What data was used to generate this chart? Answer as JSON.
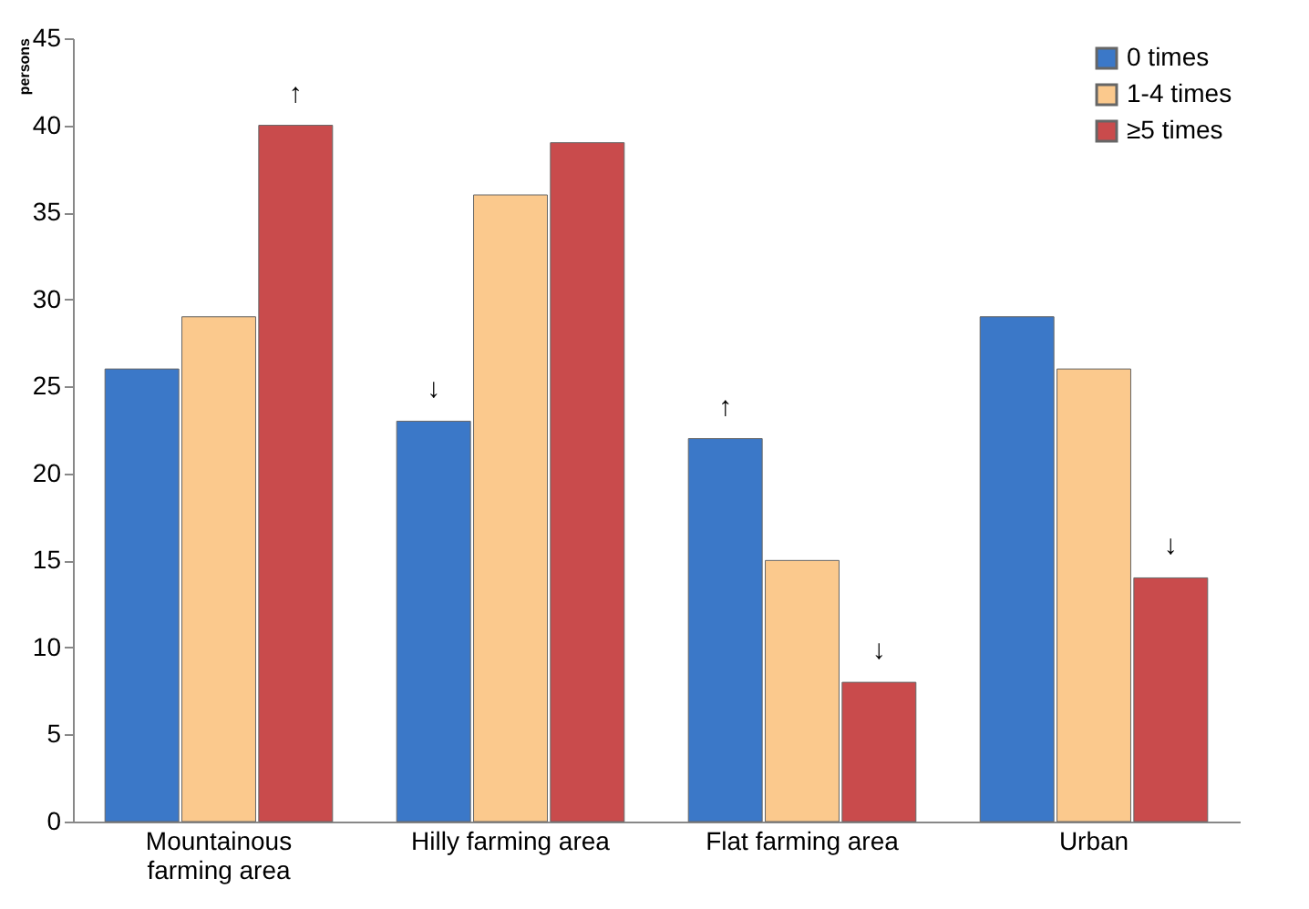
{
  "chart_data": {
    "type": "bar",
    "ylabel": "persons",
    "categories": [
      "Mountainous farming area",
      "Hilly farming area",
      "Flat farming area",
      "Urban"
    ],
    "series": [
      {
        "name": "0 times",
        "color": "#3b78c8",
        "values": [
          26,
          23,
          22,
          29
        ],
        "value_labels": [
          null,
          "↓",
          "↑",
          null
        ]
      },
      {
        "name": "1-4 times",
        "color": "#fbc98d",
        "values": [
          29,
          36,
          15,
          26
        ]
      },
      {
        "name": "≥5 times",
        "color": "#c94b4c",
        "values": [
          40,
          39,
          8,
          14
        ],
        "value_labels": [
          "↑",
          null,
          "↓",
          "↓"
        ]
      }
    ],
    "ylim": [
      0,
      45
    ],
    "yticks": [
      0,
      5,
      10,
      15,
      20,
      25,
      30,
      35,
      40,
      45
    ],
    "grid": false,
    "legend": "top right"
  }
}
